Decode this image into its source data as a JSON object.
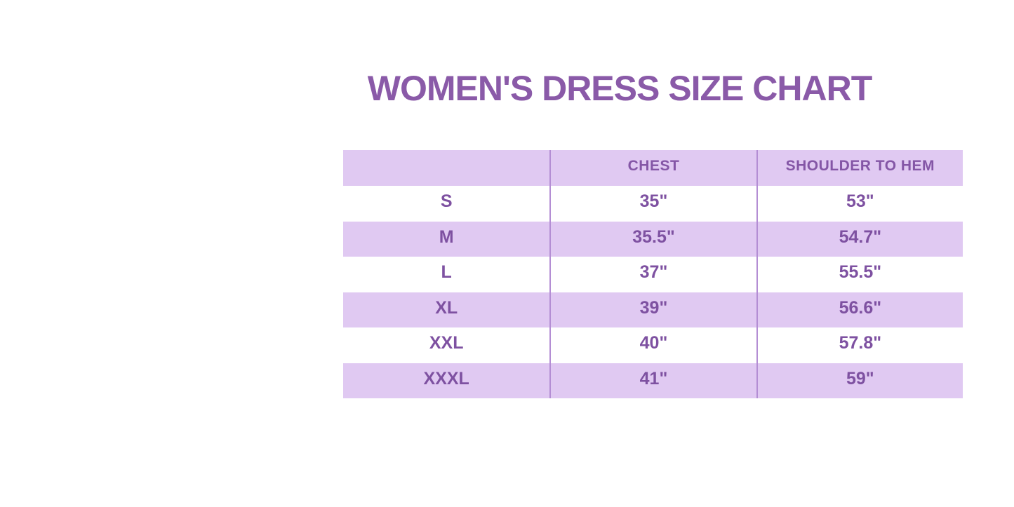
{
  "page": {
    "background": "#ffffff"
  },
  "colors": {
    "title_text": "#8a5aa8",
    "table_text": "#7e51a1",
    "header_text": "#8456a6",
    "band_lavender": "#e0c9f2",
    "band_white": "#ffffff",
    "divider": "#b48ed4"
  },
  "chart_data": {
    "type": "table",
    "title": "WOMEN'S DRESS SIZE CHART",
    "columns": [
      "",
      "CHEST",
      "SHOULDER TO HEM"
    ],
    "rows": [
      [
        "S",
        "35\"",
        "53\""
      ],
      [
        "M",
        "35.5\"",
        "54.7\""
      ],
      [
        "L",
        "37\"",
        "55.5\""
      ],
      [
        "XL",
        "39\"",
        "56.6\""
      ],
      [
        "XXL",
        "40\"",
        "57.8\""
      ],
      [
        "XXXL",
        "41\"",
        "59\""
      ]
    ],
    "layout": {
      "row_banding": [
        "lavender",
        "white",
        "lavender",
        "white",
        "lavender",
        "white",
        "lavender"
      ],
      "grid": "vertical dividers only, no outer border"
    }
  }
}
